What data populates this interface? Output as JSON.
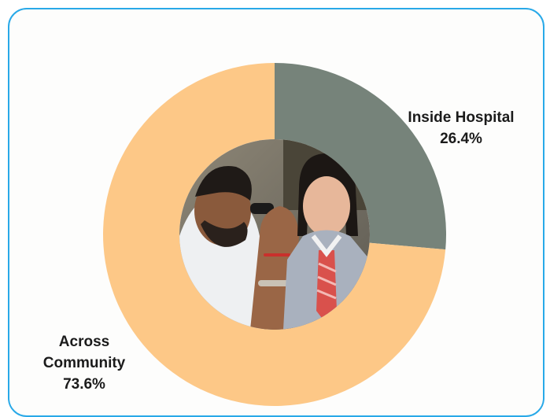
{
  "chart_data": {
    "type": "pie",
    "variant": "donut",
    "slices": [
      {
        "label": "Inside Hospital",
        "value": 26.4,
        "value_label": "26.4%",
        "color": "#76837a"
      },
      {
        "label": "Across Community",
        "value": 73.6,
        "value_label": "73.6%",
        "color": "#fdc887"
      }
    ],
    "legend": "none",
    "center_image": "photo-eye-ear-exam"
  },
  "labels": {
    "hospital_line1": "Inside Hospital",
    "hospital_line2": "26.4%",
    "community_line1": "Across",
    "community_line2": "Community",
    "community_line3": "73.6%"
  },
  "colors": {
    "border": "#29a9e8",
    "background": "#fdfdfc"
  }
}
